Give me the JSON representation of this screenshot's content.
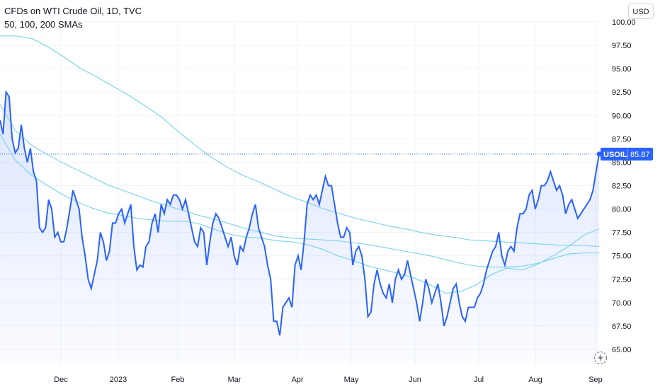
{
  "header": {
    "title": "CFDs on WTI Crude Oil, 1D, TVC",
    "indicators": "50, 100, 200 SMAs",
    "currency": "USD"
  },
  "colors": {
    "price_line": "#2962ff",
    "sma": "#7fd3ee",
    "price_tag": "#2962ff",
    "grid": "#f0f3fa"
  },
  "icons": {
    "flash": "lightning-icon"
  },
  "chart_data": {
    "type": "area",
    "ylim": [
      63.5,
      100.8
    ],
    "y_ticks": [
      "65.00",
      "67.50",
      "70.00",
      "72.50",
      "75.00",
      "77.50",
      "80.00",
      "82.50",
      "85.00",
      "87.50",
      "90.00",
      "92.50",
      "95.00",
      "97.50",
      "100.00"
    ],
    "x_ticks": [
      "Dec",
      "2023",
      "Feb",
      "Mar",
      "Apr",
      "May",
      "Jun",
      "Jul",
      "Aug",
      "Sep"
    ],
    "last_price": {
      "symbol": "USOIL",
      "value": "85.87"
    },
    "series": [
      {
        "name": "USOIL",
        "values": [
          89.5,
          88.0,
          92.5,
          92.0,
          87.5,
          86.0,
          86.5,
          89.0,
          86.5,
          85.0,
          86.5,
          84.0,
          83.0,
          78.0,
          77.5,
          78.0,
          81.0,
          80.0,
          77.0,
          77.5,
          76.5,
          76.5,
          78.0,
          80.0,
          82.0,
          81.0,
          80.0,
          77.0,
          75.0,
          72.5,
          71.5,
          73.0,
          74.5,
          77.5,
          76.5,
          74.5,
          75.5,
          78.5,
          78.5,
          79.5,
          80.0,
          78.5,
          79.5,
          80.5,
          76.0,
          73.5,
          74.0,
          73.8,
          76.0,
          76.5,
          78.5,
          79.5,
          77.5,
          80.5,
          79.5,
          81.0,
          80.5,
          81.5,
          81.5,
          81.0,
          80.0,
          81.0,
          79.5,
          78.0,
          76.5,
          76.0,
          78.0,
          77.5,
          74.0,
          76.5,
          78.5,
          79.5,
          79.0,
          78.0,
          77.0,
          76.0,
          77.0,
          75.0,
          74.0,
          76.0,
          75.5,
          77.0,
          78.0,
          79.5,
          80.5,
          78.0,
          77.0,
          76.0,
          74.0,
          72.5,
          68.0,
          68.0,
          66.5,
          69.5,
          70.0,
          70.5,
          69.5,
          74.0,
          75.0,
          73.5,
          76.5,
          80.5,
          81.5,
          81.0,
          81.5,
          80.5,
          82.0,
          83.5,
          82.5,
          82.5,
          80.5,
          78.5,
          77.0,
          77.0,
          78.0,
          77.5,
          74.0,
          75.5,
          76.0,
          75.0,
          72.5,
          68.5,
          69.0,
          72.0,
          73.5,
          72.0,
          71.0,
          70.5,
          72.0,
          70.0,
          72.5,
          73.5,
          72.5,
          73.0,
          74.5,
          73.0,
          71.5,
          70.0,
          68.0,
          70.0,
          72.5,
          71.5,
          70.0,
          71.0,
          72.0,
          70.0,
          67.5,
          68.5,
          70.0,
          71.5,
          72.0,
          70.0,
          68.5,
          68.0,
          69.5,
          69.5,
          69.5,
          70.5,
          71.0,
          72.0,
          73.5,
          74.5,
          75.5,
          76.0,
          77.5,
          75.0,
          74.0,
          75.5,
          76.0,
          75.5,
          78.0,
          79.5,
          79.5,
          80.0,
          81.5,
          82.0,
          80.0,
          81.0,
          82.5,
          82.5,
          83.0,
          84.0,
          83.0,
          82.0,
          82.5,
          81.5,
          79.5,
          80.5,
          81.0,
          80.0,
          79.0,
          79.5,
          80.0,
          80.5,
          81.0,
          82.0,
          84.0,
          85.87
        ]
      },
      {
        "name": "SMA 50",
        "values": [
          88.0,
          85.2,
          83.7,
          82.6,
          81.6,
          80.8,
          80.1,
          79.6,
          79.3,
          79.0,
          78.8,
          78.7,
          78.7,
          78.4,
          77.8,
          77.3,
          77.0,
          76.9,
          76.6,
          76.5,
          76.2,
          75.7,
          75.0,
          74.5,
          73.9,
          73.5,
          73.1,
          72.6,
          71.9,
          71.0,
          71.2,
          71.9,
          73.0,
          73.7,
          73.5,
          74.1,
          75.0,
          76.0,
          77.2,
          77.9
        ]
      },
      {
        "name": "SMA 100",
        "values": [
          91.2,
          88.4,
          86.9,
          85.9,
          85.0,
          84.2,
          83.4,
          82.6,
          82.0,
          81.4,
          80.8,
          80.3,
          79.8,
          79.3,
          78.9,
          78.4,
          77.9,
          77.5,
          77.1,
          76.9,
          76.8,
          76.7,
          76.6,
          76.4,
          76.2,
          75.9,
          75.6,
          75.3,
          75.0,
          74.6,
          74.2,
          73.9,
          73.8,
          73.8,
          73.9,
          74.2,
          74.7,
          75.2,
          75.3,
          75.3
        ]
      },
      {
        "name": "SMA 200",
        "values": [
          98.5,
          98.5,
          98.2,
          97.3,
          96.2,
          95.0,
          94.1,
          93.1,
          92.1,
          91.0,
          89.8,
          88.3,
          86.9,
          85.6,
          84.5,
          83.6,
          82.9,
          82.1,
          81.3,
          80.7,
          80.0,
          79.5,
          79.0,
          78.6,
          78.2,
          77.9,
          77.5,
          77.2,
          77.0,
          76.7,
          76.6,
          76.5,
          76.4,
          76.3,
          76.2,
          76.1,
          76.1,
          76.0
        ]
      }
    ]
  }
}
